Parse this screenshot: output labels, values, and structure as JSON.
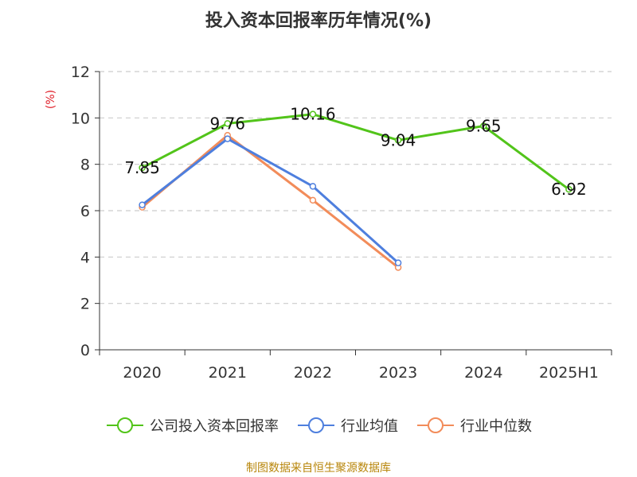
{
  "title": "投入资本回报率历年情况(%)",
  "source": "制图数据来自恒生聚源数据库",
  "chart_data": {
    "type": "line",
    "title": "投入资本回报率历年情况(%)",
    "ylabel": "(%)",
    "categories": [
      "2020",
      "2021",
      "2022",
      "2023",
      "2024",
      "2025H1"
    ],
    "ylim": [
      0,
      12
    ],
    "yticks": [
      0,
      2,
      4,
      6,
      8,
      10,
      12
    ],
    "grid": true,
    "legend_position": "bottom",
    "series": [
      {
        "name": "公司投入资本回报率",
        "color": "#52c41a",
        "labels": true,
        "values": [
          7.85,
          9.76,
          10.16,
          9.04,
          9.65,
          6.92
        ]
      },
      {
        "name": "行业均值",
        "color": "#4e7fde",
        "labels": false,
        "values": [
          6.25,
          9.1,
          7.05,
          3.75,
          null,
          null
        ]
      },
      {
        "name": "行业中位数",
        "color": "#f28c5a",
        "labels": false,
        "values": [
          6.15,
          9.25,
          6.45,
          3.55,
          null,
          null
        ]
      }
    ]
  }
}
